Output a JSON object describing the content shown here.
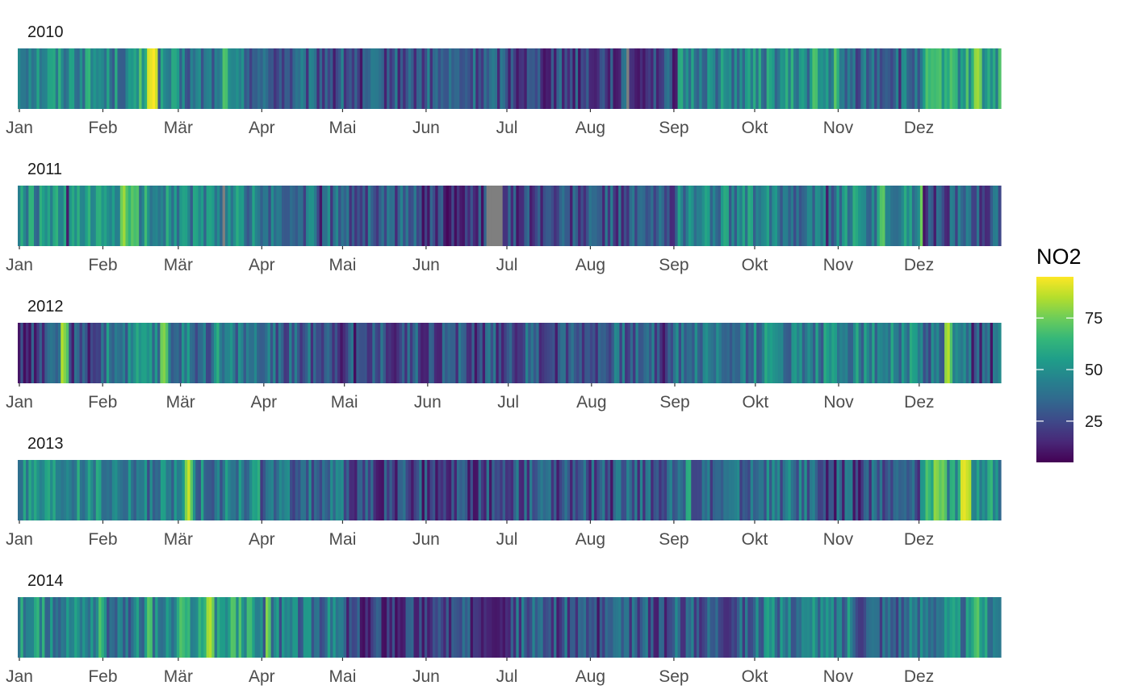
{
  "chart_data": {
    "type": "heatmap",
    "variable": "NO2",
    "colorbar": {
      "title": "NO2",
      "range": [
        5,
        95
      ],
      "ticks": [
        25,
        50,
        75
      ],
      "colormap": [
        "#440154",
        "#482878",
        "#3E4989",
        "#31688E",
        "#26828E",
        "#1F9E89",
        "#35B779",
        "#6DCD59",
        "#B4DE2C",
        "#FDE725"
      ],
      "missing_color": "#7F7F7F"
    },
    "month_labels": [
      "Jan",
      "Feb",
      "Mär",
      "Apr",
      "Mai",
      "Jun",
      "Jul",
      "Aug",
      "Sep",
      "Okt",
      "Nov",
      "Dez"
    ],
    "years": [
      {
        "year": "2010",
        "days": 365,
        "missing_days": [
          [
            226,
            226
          ]
        ],
        "highlights": [
          [
            36,
            60
          ],
          [
            45,
            72
          ],
          [
            48,
            90
          ],
          [
            49,
            92
          ],
          [
            50,
            95
          ],
          [
            51,
            88
          ],
          [
            76,
            70
          ],
          [
            77,
            68
          ],
          [
            117,
            12
          ],
          [
            127,
            10
          ],
          [
            212,
            15
          ],
          [
            223,
            14
          ],
          [
            229,
            12
          ],
          [
            230,
            10
          ],
          [
            244,
            12
          ],
          [
            295,
            70
          ],
          [
            296,
            68
          ],
          [
            303,
            72
          ],
          [
            327,
            15
          ],
          [
            342,
            70
          ],
          [
            355,
            80
          ],
          [
            356,
            82
          ],
          [
            357,
            75
          ]
        ],
        "segments": [
          [
            0,
            30,
            50
          ],
          [
            31,
            58,
            45
          ],
          [
            59,
            89,
            38
          ],
          [
            90,
            120,
            30
          ],
          [
            121,
            151,
            28
          ],
          [
            152,
            181,
            30
          ],
          [
            182,
            212,
            25
          ],
          [
            213,
            243,
            25
          ],
          [
            244,
            273,
            45
          ],
          [
            274,
            304,
            48
          ],
          [
            305,
            334,
            35
          ],
          [
            335,
            364,
            55
          ]
        ]
      },
      {
        "year": "2011",
        "days": 365,
        "missing_days": [
          [
            76,
            76
          ],
          [
            174,
            179
          ]
        ],
        "highlights": [
          [
            18,
            12
          ],
          [
            38,
            75
          ],
          [
            39,
            82
          ],
          [
            40,
            70
          ],
          [
            42,
            72
          ],
          [
            43,
            68
          ],
          [
            44,
            70
          ],
          [
            112,
            10
          ],
          [
            150,
            8
          ],
          [
            152,
            10
          ],
          [
            155,
            12
          ],
          [
            160,
            10
          ],
          [
            162,
            8
          ],
          [
            165,
            10
          ],
          [
            170,
            12
          ],
          [
            172,
            9
          ],
          [
            185,
            10
          ],
          [
            190,
            12
          ],
          [
            300,
            12
          ],
          [
            320,
            70
          ],
          [
            321,
            72
          ],
          [
            335,
            75
          ],
          [
            336,
            10
          ],
          [
            340,
            12
          ],
          [
            345,
            14
          ]
        ],
        "segments": [
          [
            0,
            30,
            48
          ],
          [
            31,
            58,
            52
          ],
          [
            59,
            89,
            45
          ],
          [
            90,
            120,
            35
          ],
          [
            121,
            151,
            30
          ],
          [
            152,
            181,
            22
          ],
          [
            182,
            212,
            25
          ],
          [
            213,
            243,
            28
          ],
          [
            244,
            273,
            45
          ],
          [
            274,
            304,
            42
          ],
          [
            305,
            334,
            48
          ],
          [
            335,
            364,
            30
          ]
        ]
      },
      {
        "year": "2012",
        "days": 366,
        "missing_days": [],
        "highlights": [
          [
            0,
            10
          ],
          [
            2,
            8
          ],
          [
            4,
            9
          ],
          [
            6,
            10
          ],
          [
            16,
            85
          ],
          [
            17,
            78
          ],
          [
            18,
            70
          ],
          [
            20,
            12
          ],
          [
            44,
            60
          ],
          [
            53,
            75
          ],
          [
            54,
            78
          ],
          [
            55,
            70
          ],
          [
            74,
            62
          ],
          [
            120,
            10
          ],
          [
            125,
            8
          ],
          [
            140,
            12
          ],
          [
            170,
            10
          ],
          [
            200,
            12
          ],
          [
            240,
            10
          ],
          [
            300,
            60
          ],
          [
            301,
            55
          ],
          [
            312,
            60
          ],
          [
            345,
            80
          ],
          [
            346,
            85
          ],
          [
            347,
            70
          ],
          [
            355,
            10
          ],
          [
            358,
            12
          ],
          [
            362,
            10
          ]
        ],
        "segments": [
          [
            0,
            30,
            25
          ],
          [
            31,
            59,
            42
          ],
          [
            60,
            90,
            40
          ],
          [
            91,
            121,
            32
          ],
          [
            122,
            152,
            28
          ],
          [
            153,
            182,
            28
          ],
          [
            183,
            213,
            30
          ],
          [
            214,
            244,
            32
          ],
          [
            245,
            274,
            40
          ],
          [
            275,
            305,
            45
          ],
          [
            306,
            335,
            45
          ],
          [
            336,
            365,
            35
          ]
        ]
      },
      {
        "year": "2013",
        "days": 365,
        "missing_days": [],
        "highlights": [
          [
            22,
            62
          ],
          [
            26,
            58
          ],
          [
            62,
            78
          ],
          [
            63,
            88
          ],
          [
            64,
            72
          ],
          [
            89,
            62
          ],
          [
            133,
            12
          ],
          [
            140,
            10
          ],
          [
            150,
            8
          ],
          [
            155,
            10
          ],
          [
            160,
            12
          ],
          [
            170,
            10
          ],
          [
            200,
            12
          ],
          [
            220,
            10
          ],
          [
            248,
            60
          ],
          [
            249,
            62
          ],
          [
            300,
            10
          ],
          [
            303,
            8
          ],
          [
            306,
            12
          ],
          [
            310,
            10
          ],
          [
            312,
            9
          ],
          [
            337,
            70
          ],
          [
            338,
            65
          ],
          [
            340,
            80
          ],
          [
            341,
            78
          ],
          [
            342,
            72
          ],
          [
            343,
            76
          ],
          [
            344,
            70
          ],
          [
            350,
            90
          ],
          [
            351,
            92
          ],
          [
            352,
            88
          ],
          [
            353,
            85
          ]
        ],
        "segments": [
          [
            0,
            30,
            45
          ],
          [
            31,
            58,
            40
          ],
          [
            59,
            89,
            42
          ],
          [
            90,
            120,
            35
          ],
          [
            121,
            151,
            25
          ],
          [
            152,
            181,
            25
          ],
          [
            182,
            212,
            28
          ],
          [
            213,
            243,
            30
          ],
          [
            244,
            273,
            35
          ],
          [
            274,
            304,
            38
          ],
          [
            305,
            334,
            30
          ],
          [
            335,
            364,
            50
          ]
        ]
      },
      {
        "year": "2014",
        "days": 365,
        "missing_days": [],
        "highlights": [
          [
            12,
            55
          ],
          [
            30,
            70
          ],
          [
            31,
            62
          ],
          [
            48,
            72
          ],
          [
            49,
            68
          ],
          [
            70,
            82
          ],
          [
            71,
            85
          ],
          [
            72,
            75
          ],
          [
            80,
            70
          ],
          [
            92,
            78
          ],
          [
            93,
            70
          ],
          [
            127,
            10
          ],
          [
            128,
            8
          ],
          [
            130,
            10
          ],
          [
            135,
            9
          ],
          [
            140,
            8
          ],
          [
            150,
            10
          ],
          [
            160,
            12
          ],
          [
            180,
            10
          ],
          [
            200,
            12
          ],
          [
            215,
            10
          ],
          [
            240,
            12
          ],
          [
            283,
            55
          ],
          [
            308,
            58
          ],
          [
            355,
            68
          ],
          [
            356,
            72
          ]
        ],
        "segments": [
          [
            0,
            30,
            48
          ],
          [
            31,
            58,
            42
          ],
          [
            59,
            89,
            55
          ],
          [
            90,
            120,
            40
          ],
          [
            121,
            151,
            22
          ],
          [
            152,
            181,
            25
          ],
          [
            182,
            212,
            30
          ],
          [
            213,
            243,
            28
          ],
          [
            244,
            273,
            32
          ],
          [
            274,
            304,
            42
          ],
          [
            305,
            334,
            35
          ],
          [
            335,
            364,
            45
          ]
        ]
      }
    ]
  }
}
